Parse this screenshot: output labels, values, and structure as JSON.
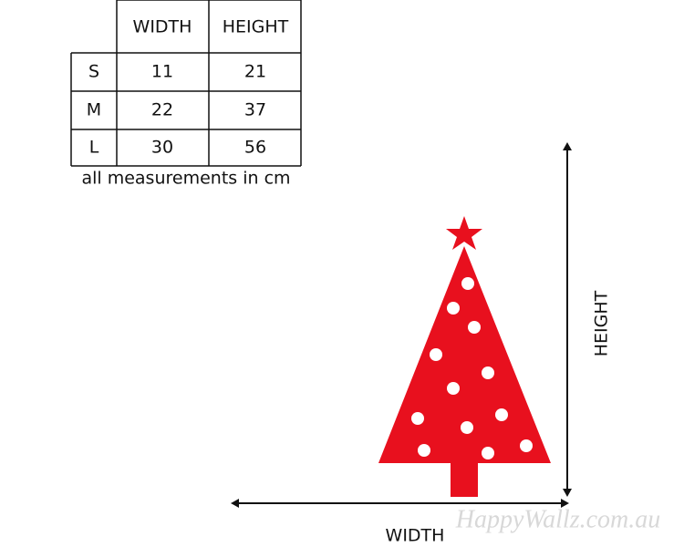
{
  "table": {
    "header": [
      "WIDTH",
      "HEIGHT"
    ],
    "rows": [
      [
        "S",
        11,
        21
      ],
      [
        "M",
        22,
        37
      ],
      [
        "L",
        30,
        56
      ]
    ],
    "note": "all measurements in cm"
  },
  "diagram": {
    "height_label": "HEIGHT",
    "width_label": "WIDTH"
  },
  "watermark": "HappyWallz.com.au"
}
